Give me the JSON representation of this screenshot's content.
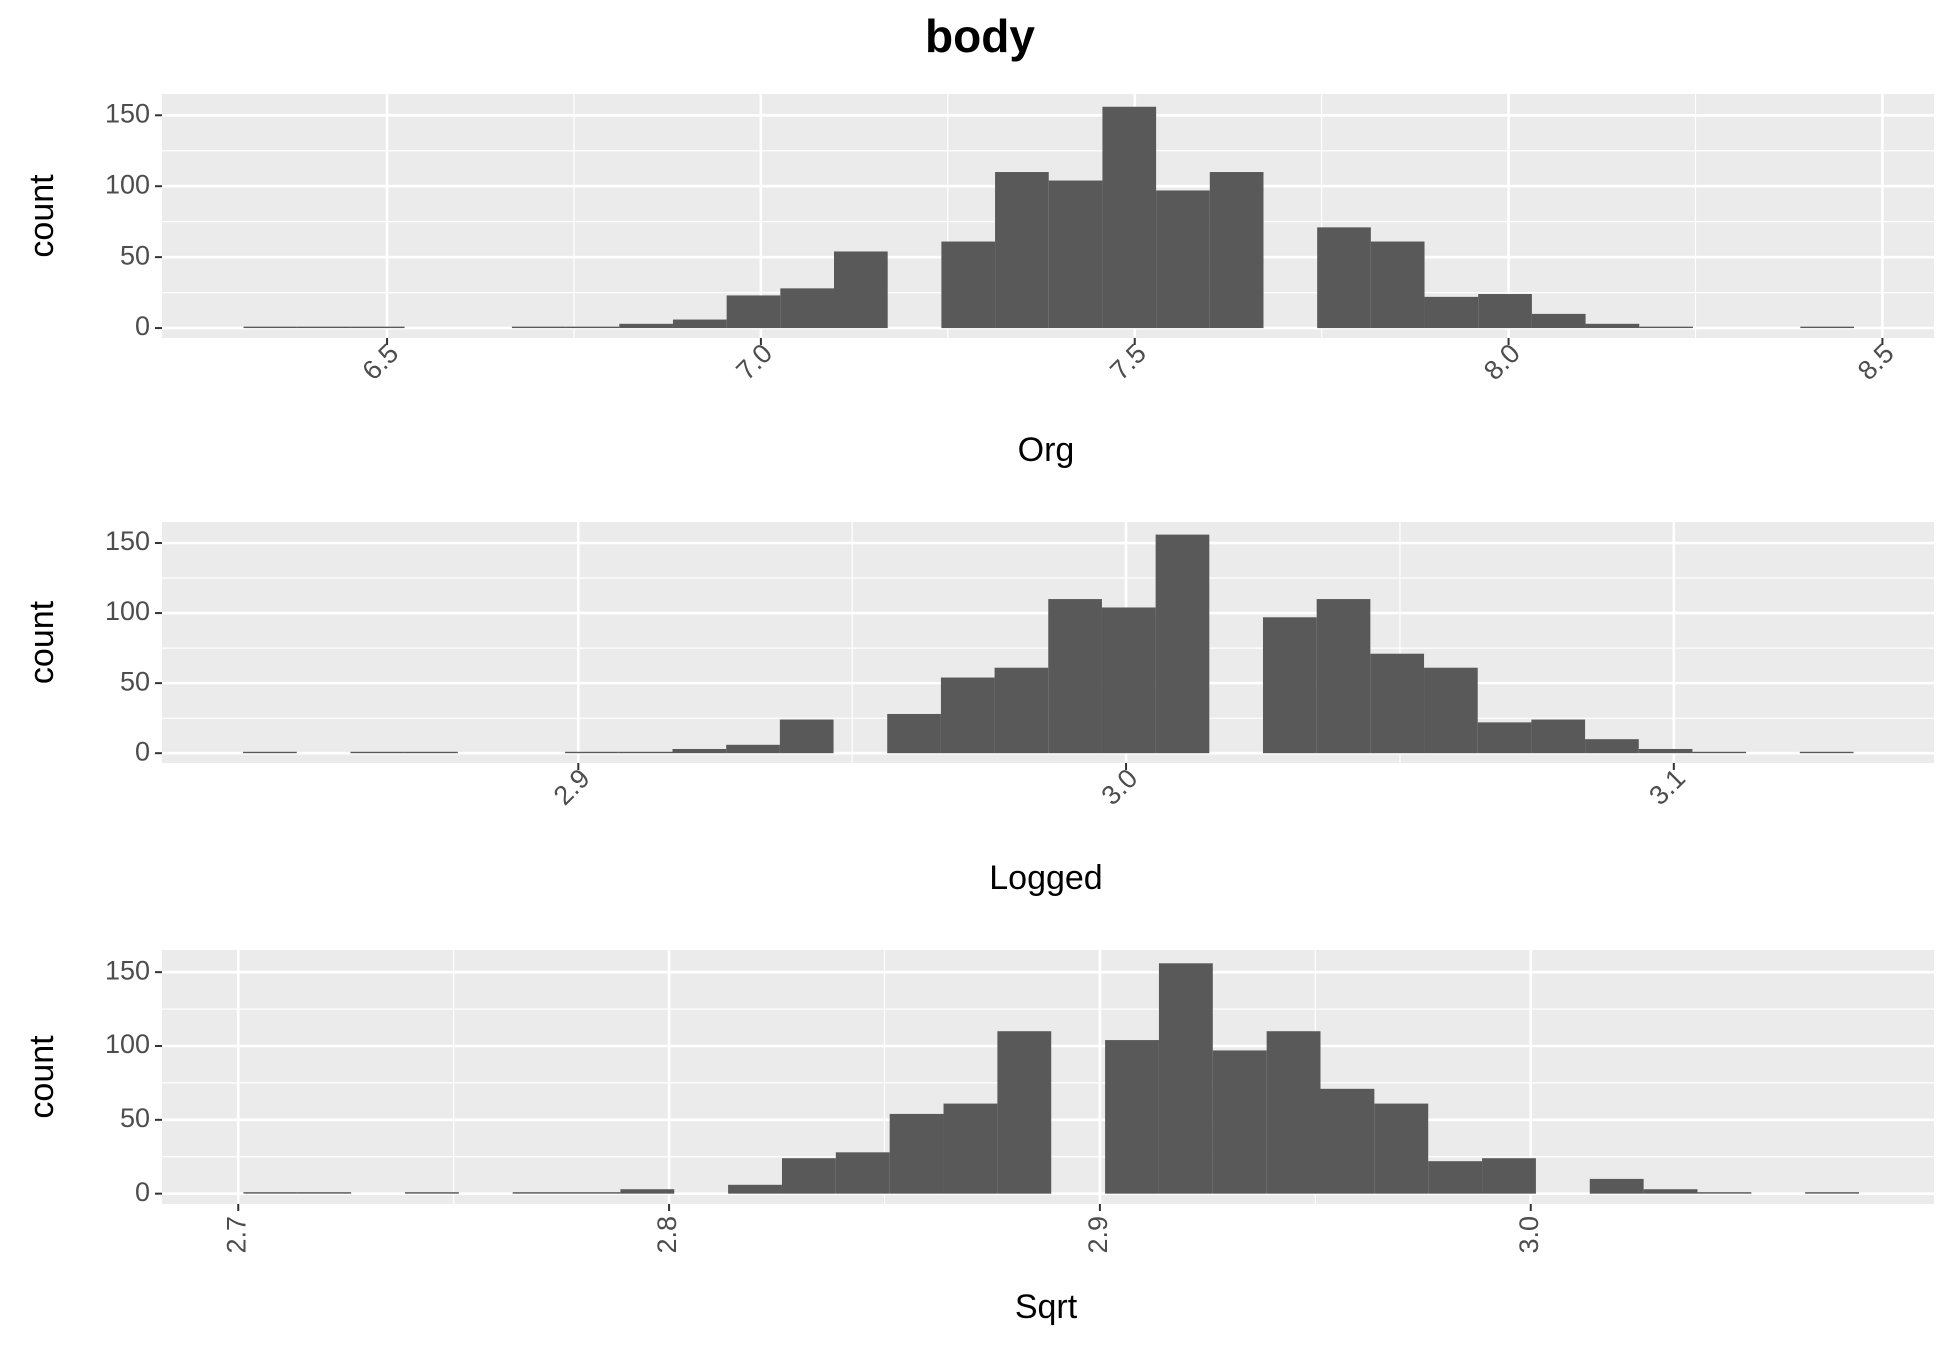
{
  "title": "body",
  "chart_data": [
    {
      "type": "histogram",
      "x_label": "Org",
      "y_label": "count",
      "color": "#595959",
      "grid": true,
      "xtick_rotation": 45,
      "bins": [
        6.308,
        6.3798,
        6.4516,
        6.5234,
        6.5952,
        6.667,
        6.7388,
        6.8106,
        6.8824,
        6.9542,
        7.026,
        7.0978,
        7.1696,
        7.2414,
        7.3132,
        7.385,
        7.4568,
        7.5286,
        7.6004,
        7.6722,
        7.744,
        7.8158,
        7.8876,
        7.9594,
        8.0312,
        8.103,
        8.1748,
        8.2466,
        8.3184,
        8.3902,
        8.462
      ],
      "values": [
        1,
        1,
        1,
        0,
        0,
        1,
        1,
        3,
        6,
        23,
        28,
        54,
        0,
        61,
        110,
        104,
        156,
        97,
        110,
        0,
        71,
        61,
        22,
        24,
        10,
        3,
        1,
        0,
        0,
        1
      ],
      "xlim": [
        6.199,
        8.569
      ],
      "xticks": [
        6.5,
        {
          "value": 7,
          "label": "7.0"
        },
        7.5,
        {
          "value": 8,
          "label": "8.0"
        },
        8.5
      ],
      "ylim": [
        -7,
        165
      ],
      "yticks": [
        0,
        50,
        100,
        150
      ]
    },
    {
      "type": "histogram",
      "x_label": "Logged",
      "y_label": "count",
      "color": "#595959",
      "grid": true,
      "xtick_rotation": 45,
      "bins": [
        2.8388,
        2.8486,
        2.8584,
        2.8682,
        2.878,
        2.8878,
        2.8976,
        2.9074,
        2.9172,
        2.927,
        2.9368,
        2.9466,
        2.9564,
        2.9662,
        2.976,
        2.9858,
        2.9956,
        3.0054,
        3.0152,
        3.025,
        3.0348,
        3.0446,
        3.0544,
        3.0642,
        3.074,
        3.0838,
        3.0936,
        3.1034,
        3.1132,
        3.123,
        3.1328
      ],
      "values": [
        1,
        0,
        1,
        1,
        0,
        0,
        1,
        1,
        3,
        6,
        24,
        0,
        28,
        54,
        61,
        110,
        104,
        156,
        0,
        97,
        110,
        71,
        61,
        22,
        24,
        10,
        3,
        1,
        0,
        1
      ],
      "xlim": [
        2.824,
        3.1475
      ],
      "xticks": [
        2.9,
        {
          "value": 3,
          "label": "3.0"
        },
        3.1
      ],
      "ylim": [
        -7,
        165
      ],
      "yticks": [
        0,
        50,
        100,
        150
      ]
    },
    {
      "type": "histogram",
      "x_label": "Sqrt",
      "y_label": "count",
      "color": "#595959",
      "grid": true,
      "xtick_rotation": 90,
      "bins": [
        2.7012,
        2.7137,
        2.7262,
        2.7387,
        2.7512,
        2.7637,
        2.7762,
        2.7887,
        2.8012,
        2.8137,
        2.8262,
        2.8387,
        2.8512,
        2.8637,
        2.8762,
        2.8887,
        2.9012,
        2.9137,
        2.9262,
        2.9387,
        2.9512,
        2.9637,
        2.9762,
        2.9887,
        3.0012,
        3.0137,
        3.0262,
        3.0387,
        3.0512,
        3.0637,
        3.0762
      ],
      "values": [
        1,
        1,
        0,
        1,
        0,
        1,
        1,
        3,
        0,
        6,
        24,
        28,
        54,
        61,
        110,
        0,
        104,
        156,
        97,
        110,
        71,
        61,
        22,
        24,
        0,
        10,
        3,
        1,
        0,
        1
      ],
      "xlim": [
        2.6823,
        3.0936
      ],
      "xticks": [
        2.7,
        2.8,
        2.9,
        {
          "value": 3,
          "label": "3.0"
        }
      ],
      "ylim": [
        -7,
        165
      ],
      "yticks": [
        0,
        50,
        100,
        150
      ]
    }
  ]
}
